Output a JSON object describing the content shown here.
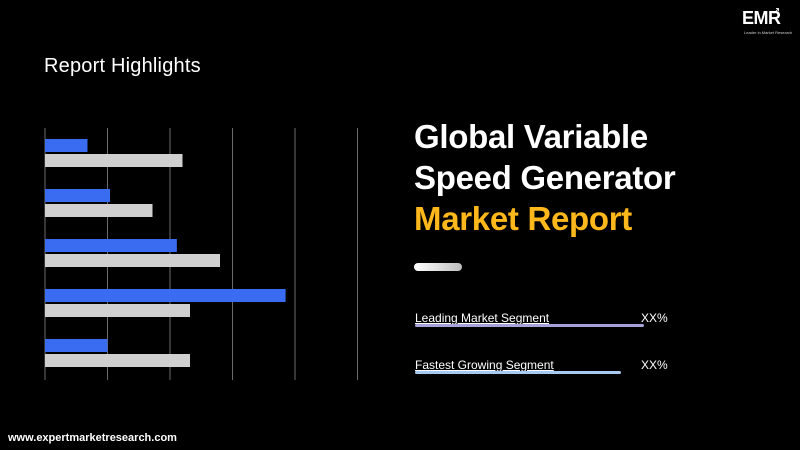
{
  "section_title": "Report Highlights",
  "headline": {
    "line1": "Global Variable",
    "line2": "Speed Generator",
    "accent_line": "Market Report"
  },
  "segments": [
    {
      "label": "Leading Market Segment",
      "value": "XX%",
      "fill": 1.0,
      "color": "#a6a3d9"
    },
    {
      "label": "Fastest Growing Segment",
      "value": "XX%",
      "fill": 0.9,
      "color": "#a8c8f0"
    }
  ],
  "footer_url": "www.expertmarketresearch.com",
  "logo": {
    "mark": "EMR",
    "tagline": "Leader in Market Research"
  },
  "colors": {
    "background": "#000000",
    "accent": "#ffb81c",
    "bar_blue": "#3a6cf2",
    "bar_gray": "#d0d0d0",
    "gridline": "#6b6b6b"
  },
  "chart_data": {
    "type": "bar",
    "orientation": "horizontal",
    "groups": 5,
    "grid": true,
    "series": [
      {
        "values": [
          0.68,
          1.04,
          2.11,
          3.85,
          1.0
        ]
      },
      {
        "values": [
          2.2,
          1.72,
          2.8,
          2.32,
          2.32
        ]
      }
    ],
    "xlim": [
      0,
      5
    ]
  }
}
